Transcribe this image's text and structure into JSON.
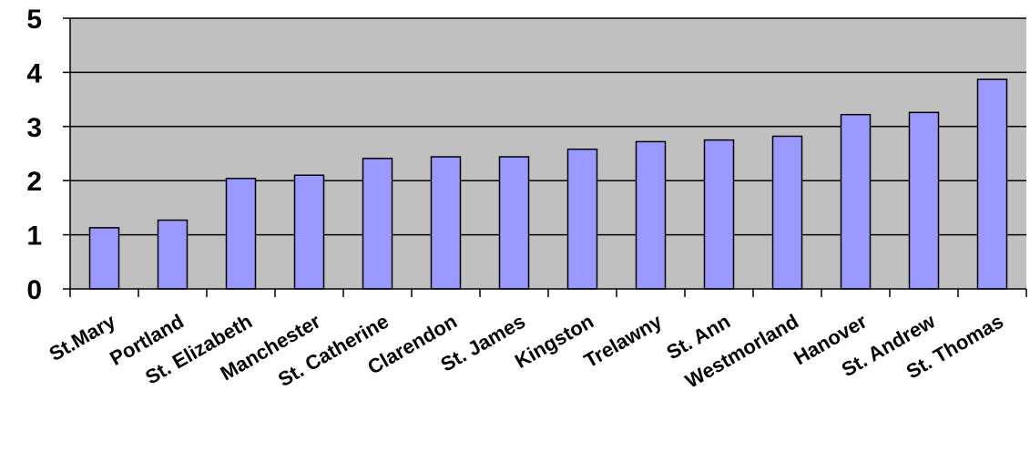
{
  "chart_data": {
    "type": "bar",
    "title": "",
    "xlabel": "",
    "ylabel": "",
    "categories": [
      "St.Mary",
      "Portland",
      "St. Elizabeth",
      "Manchester",
      "St. Catherine",
      "Clarendon",
      "St. James",
      "Kingston",
      "Trelawny",
      "St. Ann",
      "Westmorland",
      "Hanover",
      "St. Andrew",
      "St. Thomas"
    ],
    "values": [
      1.13,
      1.27,
      2.04,
      2.1,
      2.41,
      2.44,
      2.44,
      2.58,
      2.72,
      2.75,
      2.82,
      3.22,
      3.26,
      3.87
    ],
    "ylim": [
      0,
      5
    ],
    "yticks": [
      "0",
      "1",
      "2",
      "3",
      "4",
      "5"
    ],
    "grid": true,
    "legend": "none",
    "colors": {
      "plot_background": "#c0c0c0",
      "bar_fill": "#9999ff",
      "bar_stroke": "#000000",
      "gridline": "#000000"
    }
  }
}
